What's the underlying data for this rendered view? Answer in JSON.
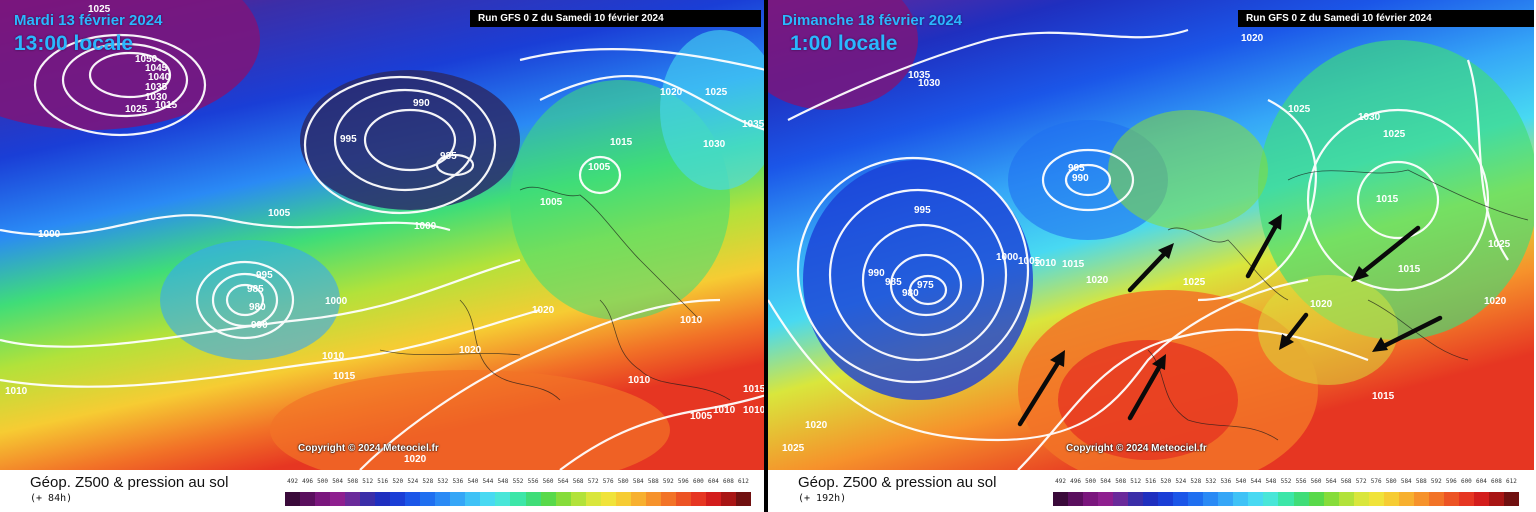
{
  "panels": [
    {
      "date": "Mardi 13 février 2024",
      "time": "13:00 locale",
      "run": "Run GFS 0 Z du Samedi 10 février 2024",
      "copyright": "Copyright © 2024 Meteociel.fr",
      "product": "Géop. Z500 & pression au sol",
      "lead": "(+ 84h)",
      "isobar_labels": [
        "1025",
        "1050",
        "1045",
        "1040",
        "1035",
        "1030",
        "1025",
        "1015",
        "990",
        "985",
        "995",
        "1005",
        "1005",
        "1015",
        "1020",
        "1025",
        "1030",
        "1035",
        "1000",
        "1005",
        "1000",
        "995",
        "985",
        "980",
        "990",
        "1000",
        "1010",
        "1015",
        "1020",
        "1020",
        "1010",
        "1010",
        "1010",
        "1005",
        "1010",
        "1015",
        "1020",
        "1010"
      ]
    },
    {
      "date": "Dimanche 18 février 2024",
      "time": "1:00 locale",
      "run": "Run GFS 0 Z du Samedi 10 février 2024",
      "copyright": "Copyright © 2024 Meteociel.fr",
      "product": "Géop. Z500 & pression au sol",
      "lead": "(+ 192h)",
      "isobar_labels": [
        "1020",
        "1035",
        "1030",
        "1025",
        "1030",
        "1025",
        "995",
        "990",
        "995",
        "1000",
        "1005",
        "1010",
        "1015",
        "1020",
        "1025",
        "1015",
        "990",
        "985",
        "975",
        "980",
        "1015",
        "1025",
        "1020",
        "1015",
        "1020",
        "1025",
        "1020"
      ]
    }
  ],
  "scale_values": [
    "492",
    "496",
    "500",
    "504",
    "508",
    "512",
    "516",
    "520",
    "524",
    "528",
    "532",
    "536",
    "540",
    "544",
    "548",
    "552",
    "556",
    "560",
    "564",
    "568",
    "572",
    "576",
    "580",
    "584",
    "588",
    "592",
    "596",
    "600",
    "604",
    "608",
    "612"
  ],
  "scale_colors": [
    "#3a0a3a",
    "#5a0f5e",
    "#7a167d",
    "#8e1f8f",
    "#6a2a9a",
    "#3b2ea8",
    "#1f2fbf",
    "#1a3ed6",
    "#1b56e8",
    "#1f6ff0",
    "#2a8af5",
    "#35a6f7",
    "#3fc2f6",
    "#48d9f2",
    "#49e6d8",
    "#3ce6a8",
    "#3fdd78",
    "#58d94a",
    "#86dc3a",
    "#b2e23a",
    "#d9e63c",
    "#f0e33a",
    "#f6cc33",
    "#f7b02f",
    "#f6922b",
    "#f27327",
    "#ec5324",
    "#e63622",
    "#d31d1c",
    "#a81514",
    "#701010"
  ]
}
